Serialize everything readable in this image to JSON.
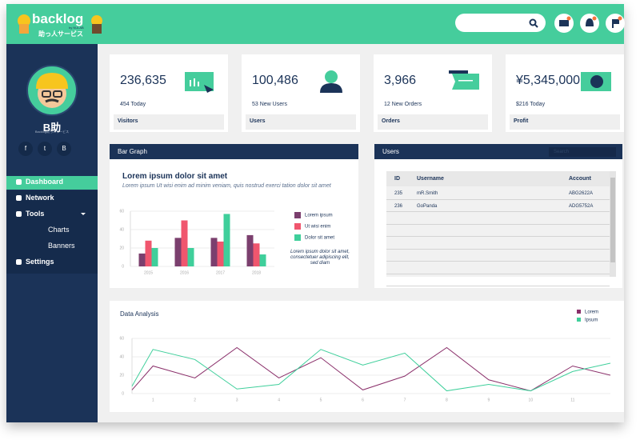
{
  "header": {
    "logo": "backlog",
    "logo_by": "by NULAB",
    "logo_sub": "助っ人サービス"
  },
  "profile": {
    "name": "B助",
    "subtitle": "Backlog助っ人サービス",
    "social": [
      "f",
      "t",
      "B"
    ]
  },
  "nav": [
    "Dashboard",
    "Network",
    "Tools",
    "Charts",
    "Banners",
    "Settings"
  ],
  "stats": [
    {
      "value": "236,635",
      "sub": "454 Today",
      "label": "Visitors"
    },
    {
      "value": "100,486",
      "sub": "53 New Users",
      "label": "Users"
    },
    {
      "value": "3,966",
      "sub": "12 New Orders",
      "label": "Orders"
    },
    {
      "value": "¥5,345,000",
      "sub": "$216 Today",
      "label": "Profit"
    }
  ],
  "panels": {
    "bar": "Bar Graph",
    "users": "Users",
    "search": "Search"
  },
  "users": {
    "headers": [
      "ID",
      "Username",
      "Account"
    ],
    "rows": [
      [
        "235",
        "mR.Smith",
        "ABG2622A"
      ],
      [
        "236",
        "GoPanda",
        "ADG5752A"
      ]
    ]
  },
  "chart_data": [
    {
      "type": "bar",
      "title": "Lorem ipsum dolor sit amet",
      "subtitle": "Lorem ipsum Ut wisi enim ad minim veniam, quis nostrud exerci tation dolor sit amet",
      "annotation": "Lorem ipsum dolor sit amet, consectetuer adipiscing elit, sed diam",
      "categories": [
        "2015",
        "2016",
        "2017",
        "2018"
      ],
      "series": [
        {
          "name": "Lorem ipsum",
          "color": "#7b3f6e",
          "values": [
            14,
            31,
            31,
            34
          ]
        },
        {
          "name": "Ut wisi enim",
          "color": "#f0566e",
          "values": [
            28,
            50,
            27,
            25
          ]
        },
        {
          "name": "Dolor sit amet",
          "color": "#3fcf9b",
          "values": [
            20,
            20,
            57,
            13
          ]
        }
      ],
      "ylim": [
        0,
        60
      ],
      "yticks": [
        0,
        20,
        40,
        60
      ],
      "grid": true,
      "legend": "right"
    },
    {
      "type": "line",
      "title": "Data Analysis",
      "x": [
        0.5,
        1,
        2,
        3,
        4,
        5,
        6,
        7,
        8,
        9,
        10,
        11,
        11.9
      ],
      "series": [
        {
          "name": "Lorem",
          "color": "#8a2f6a",
          "values": [
            4,
            30,
            17,
            50,
            17,
            39,
            4,
            19,
            50,
            15,
            3,
            30,
            20
          ]
        },
        {
          "name": "Ipsum",
          "color": "#3fcf9b",
          "values": [
            8,
            48,
            37,
            5,
            10,
            48,
            31,
            44,
            3,
            10,
            3,
            24,
            33
          ]
        }
      ],
      "xlim": [
        0.5,
        11.9
      ],
      "xticks": [
        1,
        2,
        3,
        4,
        5,
        6,
        7,
        8,
        9,
        10,
        11
      ],
      "ylim": [
        0,
        60
      ],
      "yticks": [
        0,
        20,
        40,
        60
      ],
      "grid": true,
      "legend": "top-right"
    }
  ]
}
